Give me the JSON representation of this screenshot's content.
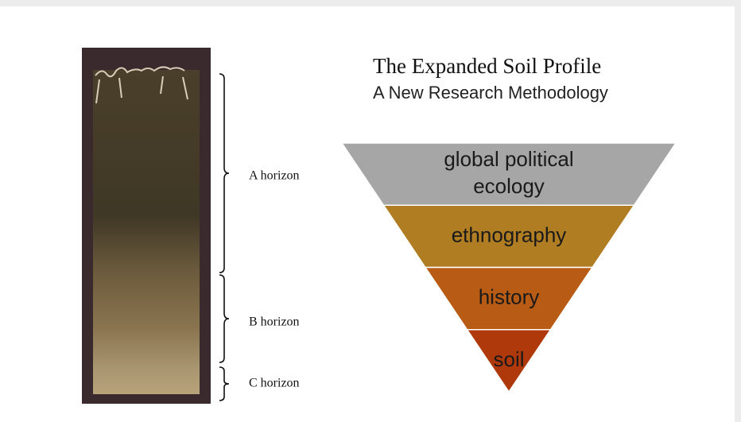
{
  "header": {
    "title": "The Expanded Soil Profile",
    "subtitle": "A New Research Methodology"
  },
  "horizons": [
    {
      "label": "A horizon"
    },
    {
      "label": "B horizon"
    },
    {
      "label": "C horizon"
    }
  ],
  "pyramid": [
    {
      "lines": [
        "global political",
        "ecology"
      ]
    },
    {
      "lines": [
        "ethnography"
      ]
    },
    {
      "lines": [
        "history"
      ]
    },
    {
      "lines": [
        "soil"
      ]
    }
  ]
}
